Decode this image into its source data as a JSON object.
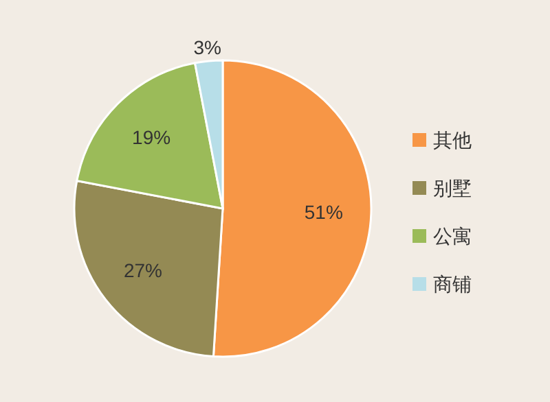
{
  "chart_data": {
    "type": "pie",
    "categories": [
      "其他",
      "别墅",
      "公寓",
      "商铺"
    ],
    "values": [
      51,
      27,
      19,
      3
    ],
    "colors": [
      "#f79646",
      "#948a54",
      "#9bbb59",
      "#b7dee8"
    ],
    "value_labels": [
      "51%",
      "27%",
      "19%",
      "3%"
    ],
    "legend": "right"
  }
}
